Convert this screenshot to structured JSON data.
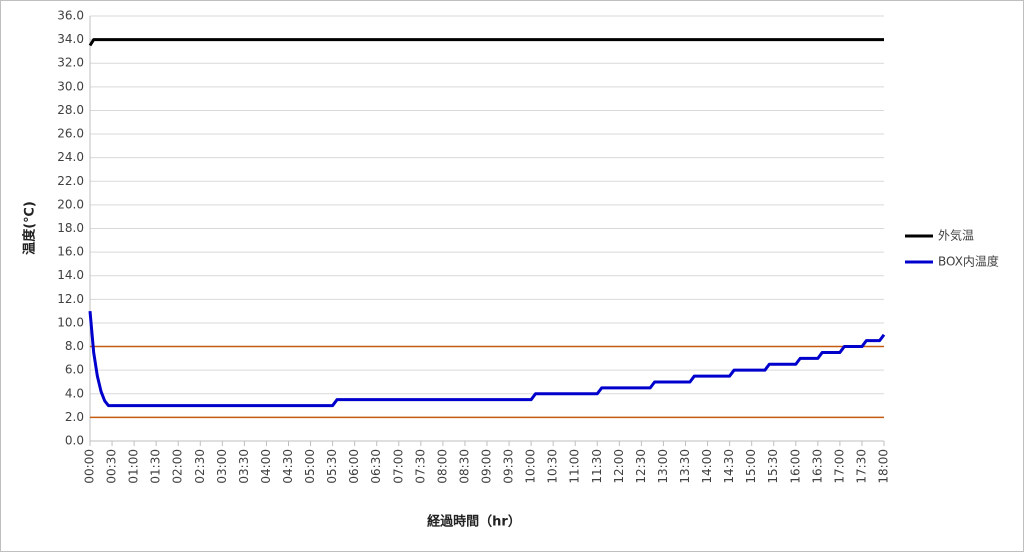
{
  "chart_data": {
    "type": "line",
    "y_label": "温度(℃)",
    "x_label": "経過時間（hr）",
    "x": [
      0,
      5,
      10,
      15,
      20,
      25,
      30,
      330,
      336,
      600,
      606,
      690,
      696,
      762,
      768,
      816,
      822,
      870,
      876,
      918,
      924,
      960,
      966,
      990,
      996,
      1020,
      1026,
      1050,
      1056,
      1074,
      1080
    ],
    "series": [
      {
        "name": "外気温",
        "color": "#000000",
        "values": [
          33.5,
          34,
          34,
          34,
          34,
          34,
          34,
          34,
          34,
          34,
          34,
          34,
          34,
          34,
          34,
          34,
          34,
          34,
          34,
          34,
          34,
          34,
          34,
          34,
          34,
          34,
          34,
          34,
          34,
          34,
          34
        ]
      },
      {
        "name": "BOX内温度",
        "color": "#0000cc",
        "values": [
          11,
          7.5,
          5.5,
          4.2,
          3.4,
          3.0,
          3.0,
          3.0,
          3.5,
          3.5,
          4.0,
          4.0,
          4.5,
          4.5,
          5.0,
          5.0,
          5.5,
          5.5,
          6.0,
          6.0,
          6.5,
          6.5,
          7.0,
          7.0,
          7.5,
          7.5,
          8.0,
          8.0,
          8.5,
          8.5,
          9.0
        ]
      }
    ],
    "reference_lines": [
      {
        "value": 2,
        "color": "#c55a11"
      },
      {
        "value": 8,
        "color": "#c55a11"
      }
    ],
    "xlim": [
      0,
      1080
    ],
    "xticks": [
      {
        "value": 0,
        "label": "00:00"
      },
      {
        "value": 30,
        "label": "00:30"
      },
      {
        "value": 60,
        "label": "01:00"
      },
      {
        "value": 90,
        "label": "01:30"
      },
      {
        "value": 120,
        "label": "02:00"
      },
      {
        "value": 150,
        "label": "02:30"
      },
      {
        "value": 180,
        "label": "03:00"
      },
      {
        "value": 210,
        "label": "03:30"
      },
      {
        "value": 240,
        "label": "04:00"
      },
      {
        "value": 270,
        "label": "04:30"
      },
      {
        "value": 300,
        "label": "05:00"
      },
      {
        "value": 330,
        "label": "05:30"
      },
      {
        "value": 360,
        "label": "06:00"
      },
      {
        "value": 390,
        "label": "06:30"
      },
      {
        "value": 420,
        "label": "07:00"
      },
      {
        "value": 450,
        "label": "07:30"
      },
      {
        "value": 480,
        "label": "08:00"
      },
      {
        "value": 510,
        "label": "08:30"
      },
      {
        "value": 540,
        "label": "09:00"
      },
      {
        "value": 570,
        "label": "09:30"
      },
      {
        "value": 600,
        "label": "10:00"
      },
      {
        "value": 630,
        "label": "10:30"
      },
      {
        "value": 660,
        "label": "11:00"
      },
      {
        "value": 690,
        "label": "11:30"
      },
      {
        "value": 720,
        "label": "12:00"
      },
      {
        "value": 750,
        "label": "12:30"
      },
      {
        "value": 780,
        "label": "13:00"
      },
      {
        "value": 810,
        "label": "13:30"
      },
      {
        "value": 840,
        "label": "14:00"
      },
      {
        "value": 870,
        "label": "14:30"
      },
      {
        "value": 900,
        "label": "15:00"
      },
      {
        "value": 930,
        "label": "15:30"
      },
      {
        "value": 960,
        "label": "16:00"
      },
      {
        "value": 990,
        "label": "16:30"
      },
      {
        "value": 1020,
        "label": "17:00"
      },
      {
        "value": 1050,
        "label": "17:30"
      },
      {
        "value": 1080,
        "label": "18:00"
      }
    ],
    "ylim": [
      0,
      36
    ],
    "yticks": [
      {
        "value": 0,
        "label": "0.0"
      },
      {
        "value": 2,
        "label": "2.0"
      },
      {
        "value": 4,
        "label": "4.0"
      },
      {
        "value": 6,
        "label": "6.0"
      },
      {
        "value": 8,
        "label": "8.0"
      },
      {
        "value": 10,
        "label": "10.0"
      },
      {
        "value": 12,
        "label": "12.0"
      },
      {
        "value": 14,
        "label": "14.0"
      },
      {
        "value": 16,
        "label": "16.0"
      },
      {
        "value": 18,
        "label": "18.0"
      },
      {
        "value": 20,
        "label": "20.0"
      },
      {
        "value": 22,
        "label": "22.0"
      },
      {
        "value": 24,
        "label": "24.0"
      },
      {
        "value": 26,
        "label": "26.0"
      },
      {
        "value": 28,
        "label": "28.0"
      },
      {
        "value": 30,
        "label": "30.0"
      },
      {
        "value": 32,
        "label": "32.0"
      },
      {
        "value": 34,
        "label": "34.0"
      },
      {
        "value": 36,
        "label": "36.0"
      }
    ],
    "grid": true,
    "legend": "right"
  }
}
